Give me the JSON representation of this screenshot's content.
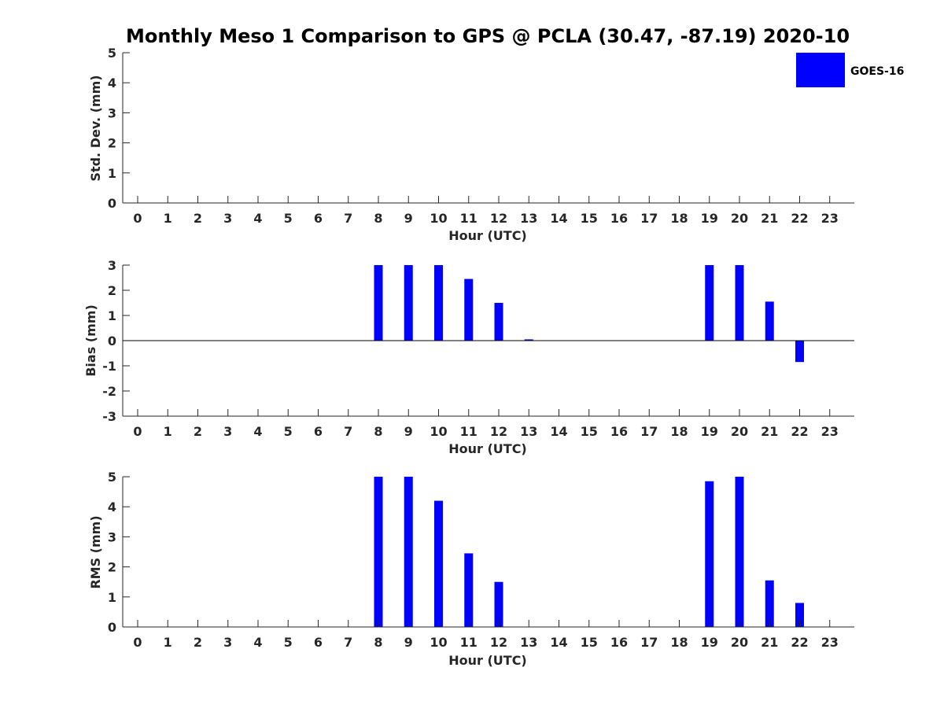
{
  "title": "Monthly Meso 1 Comparison to GPS @ PCLA (30.47, -87.19) 2020-10",
  "colors": {
    "series": "#0000ff",
    "axis": "#262626"
  },
  "chart_data": [
    {
      "type": "bar",
      "ylabel": "Std. Dev. (mm)",
      "xlabel": "Hour (UTC)",
      "x": [
        0,
        1,
        2,
        3,
        4,
        5,
        6,
        7,
        8,
        9,
        10,
        11,
        12,
        13,
        14,
        15,
        16,
        17,
        18,
        19,
        20,
        21,
        22,
        23
      ],
      "ylim": [
        0,
        5
      ],
      "yticks": [
        0,
        1,
        2,
        3,
        4,
        5
      ],
      "series": [
        {
          "name": "GOES-16",
          "values": [
            0,
            0,
            0,
            0,
            0,
            0,
            0,
            0,
            0,
            0,
            0,
            0,
            0,
            0,
            0,
            0,
            0,
            0,
            0,
            0,
            0,
            0,
            0,
            0
          ]
        }
      ],
      "legend": {
        "position": "top-right",
        "label": "GOES-16"
      }
    },
    {
      "type": "bar",
      "ylabel": "Bias (mm)",
      "xlabel": "Hour (UTC)",
      "x": [
        0,
        1,
        2,
        3,
        4,
        5,
        6,
        7,
        8,
        9,
        10,
        11,
        12,
        13,
        14,
        15,
        16,
        17,
        18,
        19,
        20,
        21,
        22,
        23
      ],
      "ylim": [
        -3,
        3
      ],
      "yticks": [
        -3,
        -2,
        -1,
        0,
        1,
        2,
        3
      ],
      "zero_line": true,
      "series": [
        {
          "name": "GOES-16",
          "values": [
            0,
            0,
            0,
            0,
            0,
            0,
            0,
            0,
            3.0,
            3.0,
            3.0,
            2.45,
            1.5,
            0.05,
            0,
            0,
            0,
            0,
            0,
            3.0,
            3.0,
            1.55,
            -0.85,
            0
          ]
        }
      ]
    },
    {
      "type": "bar",
      "ylabel": "RMS (mm)",
      "xlabel": "Hour (UTC)",
      "x": [
        0,
        1,
        2,
        3,
        4,
        5,
        6,
        7,
        8,
        9,
        10,
        11,
        12,
        13,
        14,
        15,
        16,
        17,
        18,
        19,
        20,
        21,
        22,
        23
      ],
      "ylim": [
        0,
        5
      ],
      "yticks": [
        0,
        1,
        2,
        3,
        4,
        5
      ],
      "series": [
        {
          "name": "GOES-16",
          "values": [
            0,
            0,
            0,
            0,
            0,
            0,
            0,
            0,
            5.0,
            5.0,
            4.2,
            2.45,
            1.5,
            0,
            0,
            0,
            0,
            0,
            0,
            4.85,
            5.0,
            1.55,
            0.8,
            0
          ]
        }
      ]
    }
  ]
}
